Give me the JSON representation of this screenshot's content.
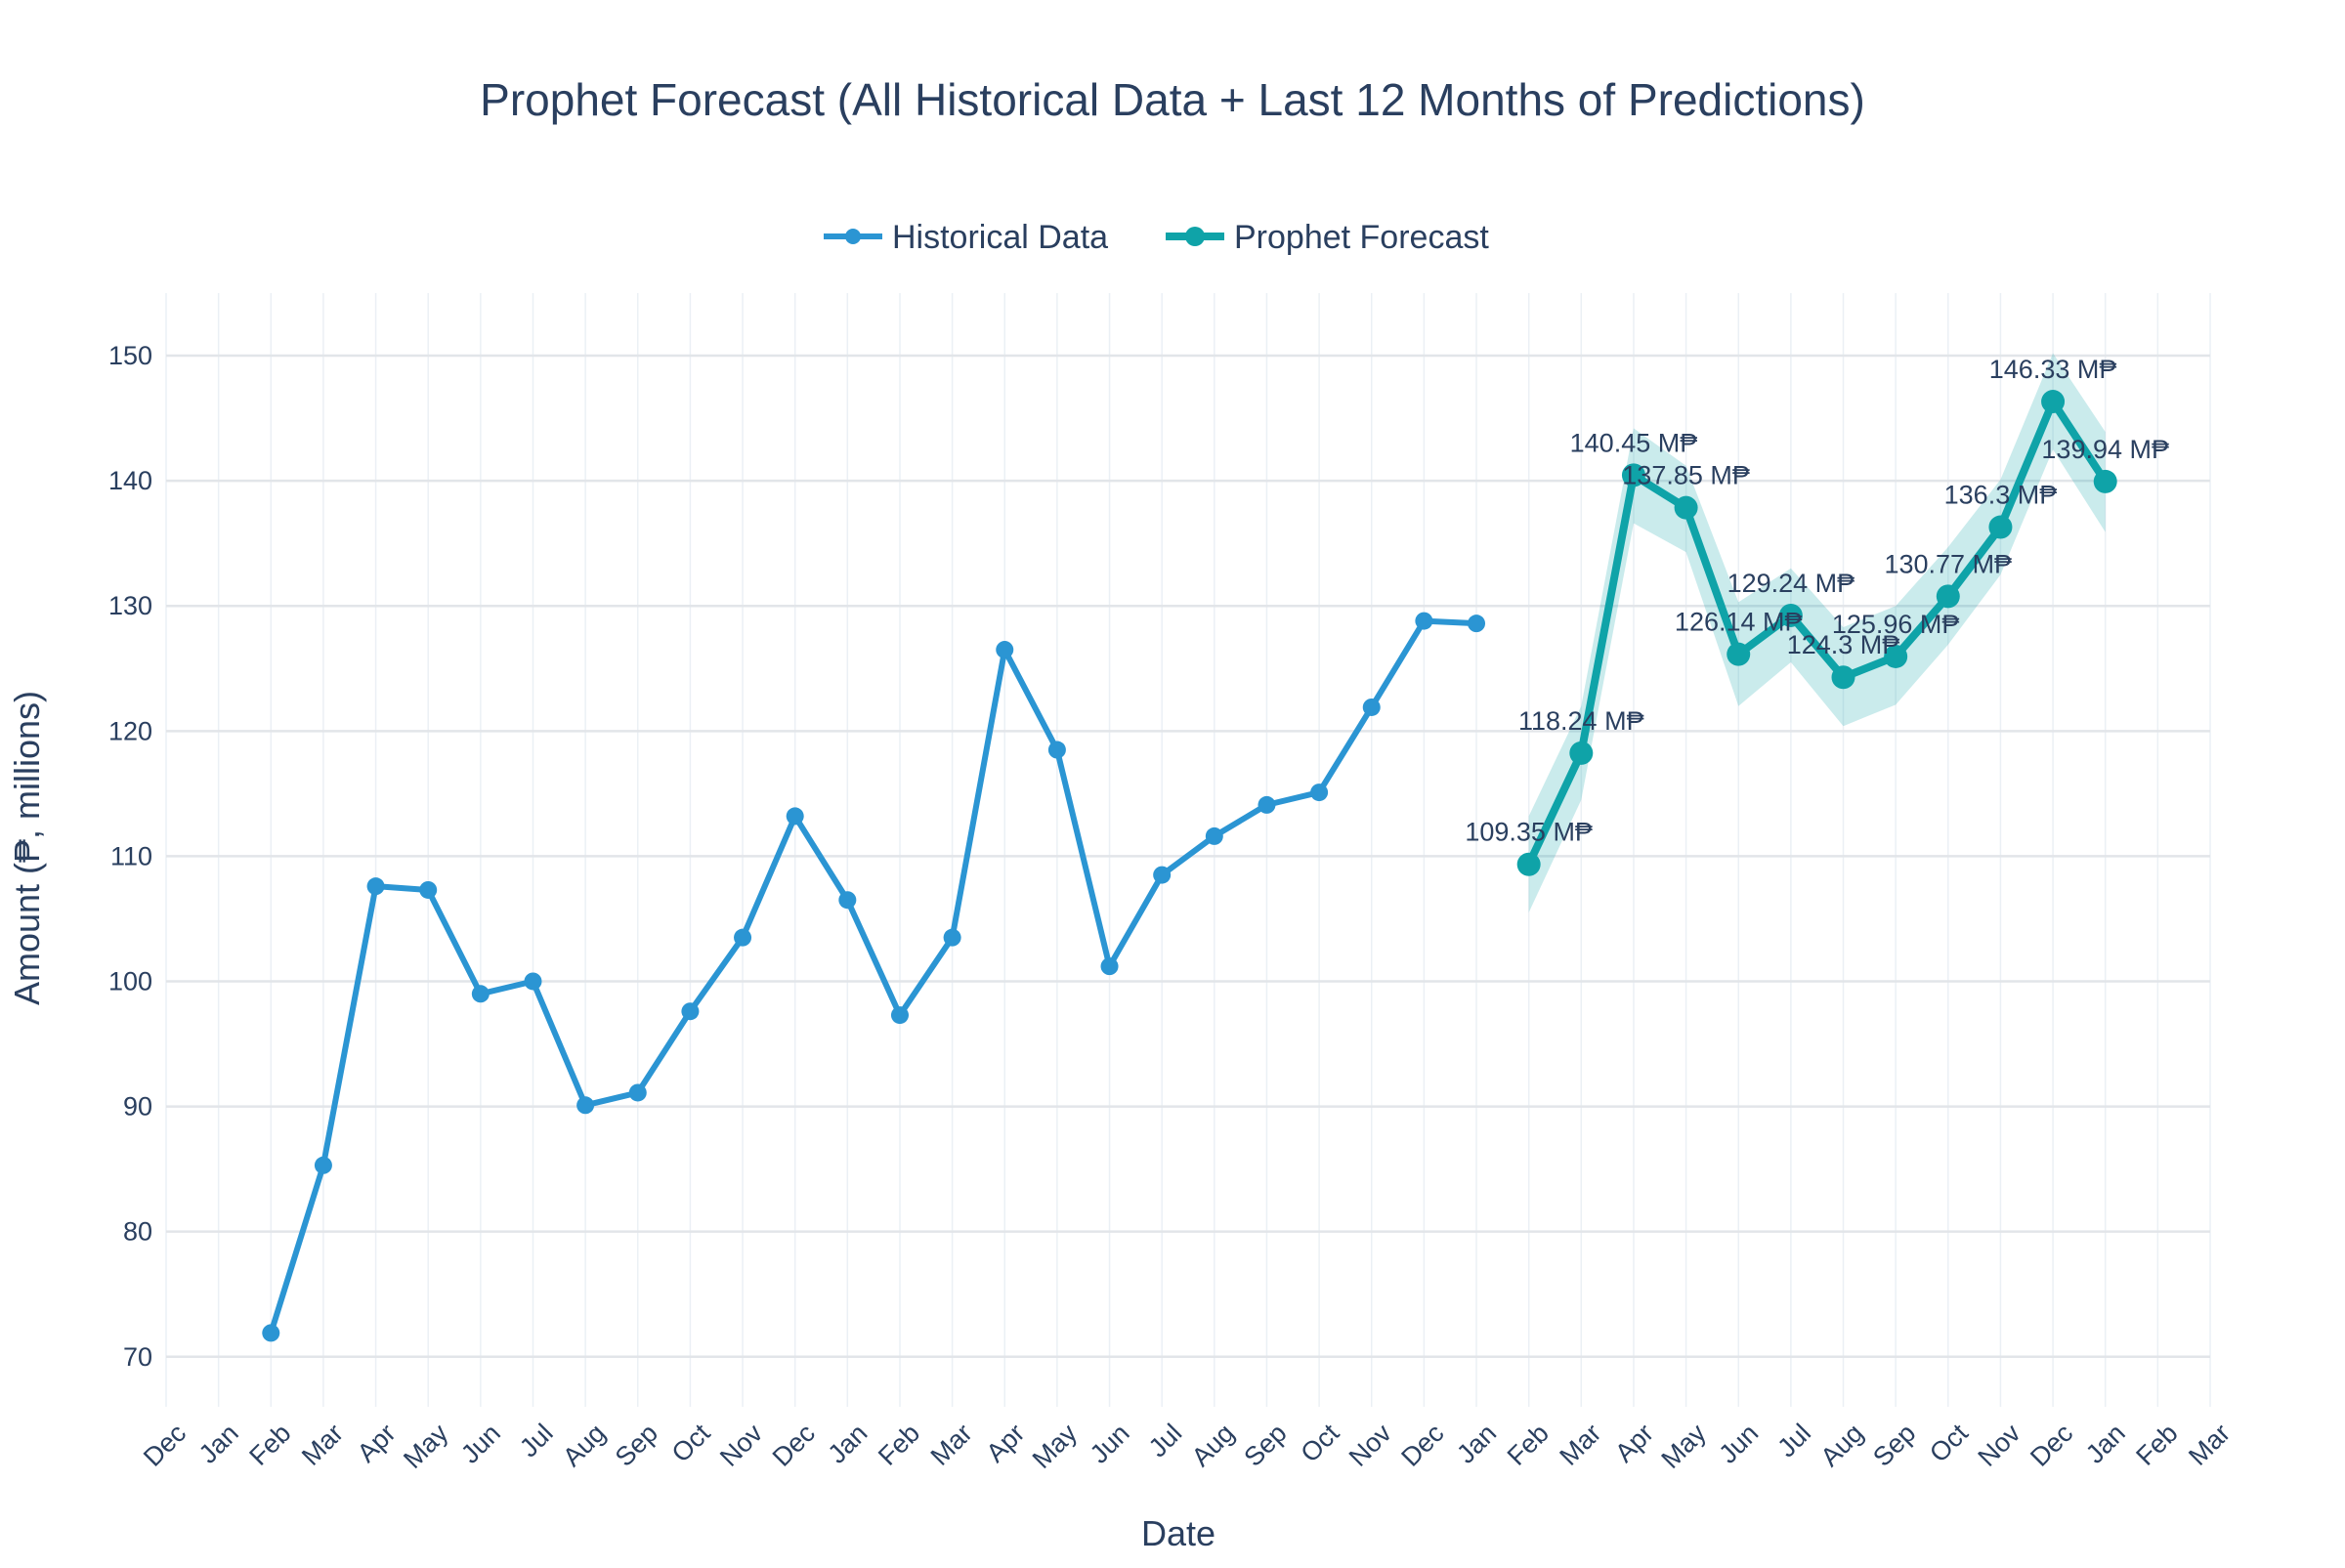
{
  "chart_data": {
    "type": "line",
    "title": "Prophet Forecast (All Historical Data + Last 12 Months of Predictions)",
    "xlabel": "Date",
    "ylabel": "Amount (₱, millions)",
    "ylim": [
      66,
      155
    ],
    "yticks": [
      70,
      80,
      90,
      100,
      110,
      120,
      130,
      140,
      150
    ],
    "x_ticks": [
      "Dec",
      "Jan",
      "Feb",
      "Mar",
      "Apr",
      "May",
      "Jun",
      "Jul",
      "Aug",
      "Sep",
      "Oct",
      "Nov",
      "Dec",
      "Jan",
      "Feb",
      "Mar",
      "Apr",
      "May",
      "Jun",
      "Jul",
      "Aug",
      "Sep",
      "Oct",
      "Nov",
      "Dec",
      "Jan",
      "Feb",
      "Mar",
      "Apr",
      "May",
      "Jun",
      "Jul",
      "Aug",
      "Sep",
      "Oct",
      "Nov",
      "Dec",
      "Jan",
      "Feb",
      "Mar"
    ],
    "grid": true,
    "legend_placement": "top-center",
    "series": [
      {
        "name": "Historical Data",
        "color": "#2b95d3",
        "x_index": [
          2,
          3,
          4,
          5,
          6,
          7,
          8,
          9,
          10,
          11,
          12,
          13,
          14,
          15,
          16,
          17,
          18,
          19,
          20,
          21,
          22,
          23,
          24,
          25
        ],
        "values": [
          71.9,
          85.3,
          107.6,
          107.3,
          99.0,
          100.0,
          90.1,
          91.1,
          97.6,
          103.5,
          113.2,
          106.5,
          97.3,
          103.5,
          126.5,
          118.5,
          101.2,
          108.5,
          111.6,
          114.1,
          115.1,
          121.9,
          128.8,
          128.6
        ]
      },
      {
        "name": "Prophet Forecast",
        "color": "#0fa3a8",
        "x_index": [
          26,
          27,
          28,
          29,
          30,
          31,
          32,
          33,
          34,
          35,
          36,
          37
        ],
        "values": [
          109.35,
          118.24,
          140.45,
          137.85,
          126.14,
          129.24,
          124.3,
          125.96,
          130.77,
          136.3,
          146.33,
          139.94
        ],
        "labels": [
          "109.35 M₱",
          "118.24 M₱",
          "140.45 M₱",
          "137.85 M₱",
          "126.14 M₱",
          "129.24 M₱",
          "124.3 M₱",
          "125.96 M₱",
          "130.77 M₱",
          "136.3 M₱",
          "146.33 M₱",
          "139.94 M₱"
        ],
        "lower": [
          105.5,
          114.5,
          136.6,
          134.3,
          122.0,
          125.5,
          120.4,
          122.1,
          126.9,
          132.5,
          142.5,
          135.9
        ],
        "upper": [
          113.2,
          122.0,
          144.2,
          141.2,
          130.3,
          133.0,
          128.3,
          130.0,
          134.7,
          140.1,
          150.2,
          143.9
        ]
      }
    ]
  }
}
